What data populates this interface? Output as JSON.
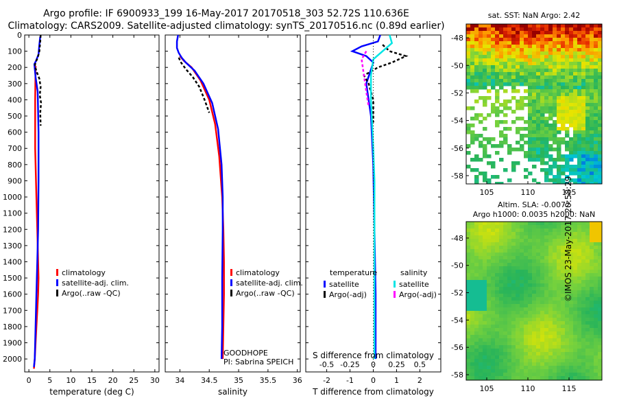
{
  "header": {
    "line1": "Argo profile: IF 6900933_199 16-May-2017 20170518_303 52.72S 110.636E",
    "line2": "Climatology: CARS2009. Satellite-adjusted climatology: synTS_20170516.nc (0.89d earlier)"
  },
  "stamp": "©IMOS 23-May-2017 20:58:29",
  "colors": {
    "climatology": "#ff0000",
    "satellite": "#0000ff",
    "argo": "#000000",
    "sat_salinity": "#00e5e5",
    "argo_adj_salinity": "#ff00ff"
  },
  "chart_data": [
    {
      "type": "line",
      "id": "temperature",
      "xlabel": "temperature (deg C)",
      "xlim": [
        -1,
        31
      ],
      "xticks": [
        0,
        5,
        10,
        15,
        20,
        25,
        30
      ],
      "ylim": [
        2080,
        0
      ],
      "yticks": [
        0,
        100,
        200,
        300,
        400,
        500,
        600,
        700,
        800,
        900,
        1000,
        1100,
        1200,
        1300,
        1400,
        1500,
        1600,
        1700,
        1800,
        1900,
        2000
      ],
      "legend": [
        "climatology",
        "satellite-adj. clim.",
        "Argo(..raw -QC)"
      ],
      "series": [
        {
          "name": "climatology",
          "color": "#ff0000",
          "x": [
            1.6,
            1.5,
            1.5,
            1.8,
            2.0,
            2.2,
            2.3,
            2.2,
            2.0,
            1.8,
            1.6,
            1.4,
            1.2
          ],
          "y": [
            190,
            400,
            700,
            1000,
            1200,
            1400,
            1500,
            1600,
            1700,
            1800,
            1900,
            2000,
            2060
          ]
        },
        {
          "name": "satellite-adj. clim.",
          "color": "#0000ff",
          "x": [
            2.7,
            2.5,
            2.3,
            1.7,
            1.3,
            1.6,
            2.1,
            2.3,
            2.3,
            2.2,
            2.0,
            1.8,
            1.6,
            1.4,
            1.2
          ],
          "y": [
            10,
            60,
            120,
            160,
            180,
            260,
            350,
            600,
            900,
            1200,
            1400,
            1600,
            1800,
            2000,
            2050
          ]
        },
        {
          "name": "Argo(..raw -QC)",
          "color": "#000000",
          "x": [
            2.8,
            2.7,
            2.5,
            2.1,
            1.6,
            1.4,
            1.9,
            2.5,
            2.8,
            2.6,
            2.9,
            2.7,
            2.8
          ],
          "y": [
            0,
            40,
            100,
            140,
            170,
            190,
            230,
            270,
            320,
            370,
            420,
            480,
            560
          ]
        }
      ]
    },
    {
      "type": "line",
      "id": "salinity",
      "xlabel": "salinity",
      "xlim": [
        33.75,
        36.05
      ],
      "xticks": [
        34,
        34.5,
        35,
        35.5,
        36
      ],
      "ylim": [
        2080,
        0
      ],
      "legend": [
        "climatology",
        "satellite-adj. clim.",
        "Argo(..raw -QC)"
      ],
      "annotations": [
        "GOODHOPE",
        "PI: Sabrina SPEICH"
      ],
      "series": [
        {
          "name": "climatology",
          "color": "#ff0000",
          "x": [
            34.0,
            34.07,
            34.2,
            34.35,
            34.5,
            34.6,
            34.67,
            34.72,
            34.74,
            34.75,
            34.75,
            34.74,
            34.73
          ],
          "y": [
            130,
            160,
            200,
            280,
            400,
            550,
            750,
            1000,
            1200,
            1400,
            1600,
            1800,
            2000
          ]
        },
        {
          "name": "satellite-adj. clim.",
          "color": "#0000ff",
          "x": [
            33.97,
            33.95,
            33.95,
            33.98,
            34.03,
            34.1,
            34.25,
            34.4,
            34.55,
            34.65,
            34.71,
            34.73,
            34.73,
            34.72,
            34.72,
            34.71
          ],
          "y": [
            0,
            40,
            80,
            110,
            140,
            170,
            220,
            300,
            420,
            580,
            800,
            1000,
            1200,
            1500,
            1800,
            2000
          ]
        },
        {
          "name": "Argo(..raw -QC)",
          "color": "#000000",
          "x": [
            33.98,
            34.02,
            34.1,
            34.22,
            34.33,
            34.42,
            34.5
          ],
          "y": [
            140,
            170,
            210,
            260,
            320,
            400,
            480
          ]
        }
      ]
    },
    {
      "type": "line",
      "id": "difference",
      "xlabel": "T difference from climatology",
      "x2label": "S difference from climatology",
      "xlim": [
        -2.9,
        2.9
      ],
      "xticks": [
        -2,
        -1,
        0,
        1,
        2
      ],
      "x2ticks": [
        -0.5,
        -0.25,
        0,
        0.25,
        0.5
      ],
      "x2ticklabels": [
        "-0.5",
        "-0.25",
        "0",
        "0.25",
        "0.5"
      ],
      "ylim": [
        2080,
        0
      ],
      "legend_temperature_title": "temperature",
      "legend_salinity_title": "salinity",
      "legend": [
        "satellite",
        "Argo(-adj)",
        "satellite",
        "Argo(-adj)"
      ],
      "series": [
        {
          "name": "satellite",
          "group": "temperature",
          "color": "#0000ff",
          "x": [
            0.3,
            0.2,
            -0.5,
            -0.9,
            -0.3,
            0.0,
            -0.3,
            -0.1,
            0.0,
            0.05,
            0.1,
            0.1
          ],
          "y": [
            0,
            40,
            70,
            100,
            130,
            170,
            300,
            500,
            800,
            1200,
            1600,
            2000
          ]
        },
        {
          "name": "Argo(-adj)",
          "group": "temperature",
          "color": "#000000",
          "x": [
            0.4,
            0.7,
            1.4,
            0.8,
            0.2,
            -0.4,
            -0.2,
            0.0,
            0.0
          ],
          "y": [
            60,
            100,
            130,
            170,
            200,
            250,
            300,
            400,
            540
          ]
        },
        {
          "name": "satellite",
          "group": "salinity",
          "color": "#00e5e5",
          "x": [
            0.7,
            0.8,
            0.4,
            0.0,
            -0.1,
            -0.1,
            0.0,
            0.05,
            0.05,
            0.05
          ],
          "y": [
            0,
            50,
            100,
            150,
            250,
            400,
            700,
            900,
            1200,
            2000
          ]
        },
        {
          "name": "Argo(-adj)",
          "group": "salinity",
          "color": "#ff00ff",
          "x": [
            -0.3,
            -0.5,
            -0.4,
            -0.3,
            -0.2
          ],
          "y": [
            100,
            150,
            250,
            350,
            440
          ]
        }
      ]
    },
    {
      "type": "heatmap",
      "id": "sst_map",
      "title": "sat. SST: NaN Argo: 2.42",
      "xlim": [
        102.5,
        119
      ],
      "xticks": [
        105,
        110,
        115
      ],
      "ylim": [
        -58.6,
        -47.0
      ],
      "yticks": [
        -48,
        -50,
        -52,
        -54,
        -56,
        -58
      ]
    },
    {
      "type": "heatmap",
      "id": "sla_map",
      "title_line1": "Altim. SLA: -0.0072",
      "title_line2": "Argo h1000: 0.0035 h2000: NaN",
      "xlim": [
        102.5,
        119
      ],
      "xticks": [
        105,
        110,
        115
      ],
      "ylim": [
        -58.4,
        -46.8
      ],
      "yticks": [
        -48,
        -50,
        -52,
        -54,
        -56,
        -58
      ]
    }
  ]
}
